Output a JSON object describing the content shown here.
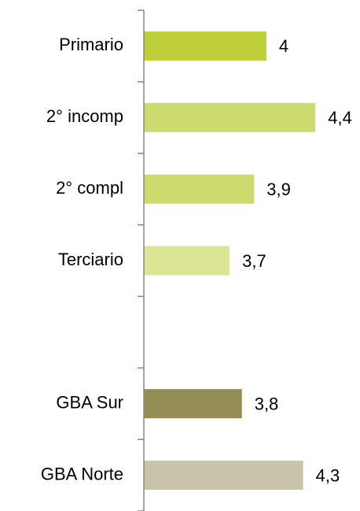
{
  "chart_data": {
    "type": "bar",
    "orientation": "horizontal",
    "categories": [
      "Primario",
      "2° incomp",
      "2° compl",
      "Terciario",
      null,
      "GBA Sur",
      "GBA Norte"
    ],
    "values": [
      4,
      4.4,
      3.9,
      3.7,
      null,
      3.8,
      4.3
    ],
    "value_labels": [
      "4",
      "4,4",
      "3,9",
      "3,7",
      null,
      "3,8",
      "4,3"
    ],
    "colors": [
      "#bfcf3a",
      "#cddb6e",
      "#cddb6e",
      "#dbe593",
      null,
      "#948c55",
      "#c9c4a9"
    ],
    "xlim": [
      3,
      4.7
    ]
  }
}
